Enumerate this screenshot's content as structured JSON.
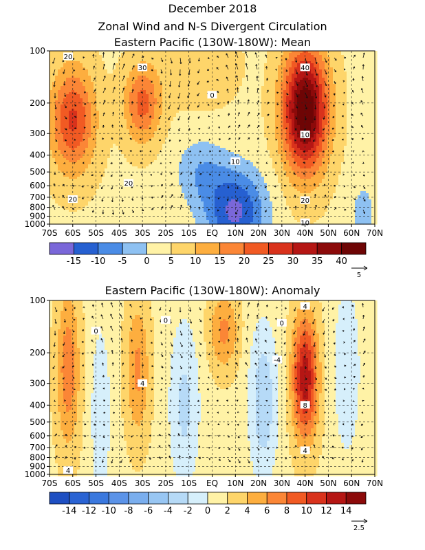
{
  "titles": {
    "line1": "December 2018",
    "line2": "Zonal Wind and N-S Divergent Circulation",
    "mean": "Eastern Pacific (130W-180W): Mean",
    "anomaly": "Eastern Pacific (130W-180W): Anomaly"
  },
  "chart_data": [
    {
      "type": "heatmap",
      "title": "Eastern Pacific (130W-180W): Mean",
      "x_ticks": [
        "70S",
        "60S",
        "50S",
        "40S",
        "30S",
        "20S",
        "10S",
        "EQ",
        "10N",
        "20N",
        "30N",
        "40N",
        "50N",
        "60N",
        "70N"
      ],
      "y_ticks": [
        "100",
        "200",
        "300",
        "400",
        "500",
        "600",
        "700",
        "800",
        "900",
        "1000"
      ],
      "colorbar_labels": [
        "-15",
        "-10",
        "-5",
        "0",
        "5",
        "10",
        "15",
        "20",
        "25",
        "30",
        "35",
        "40"
      ],
      "colorbar_levels": [
        -20,
        -15,
        -10,
        -5,
        0,
        5,
        10,
        15,
        20,
        25,
        30,
        35,
        40,
        45
      ],
      "colorbar_colors": [
        "#7a67d9",
        "#2660d1",
        "#4a8ce6",
        "#8ec1f2",
        "#fff2a6",
        "#fed56a",
        "#fdae3f",
        "#fb8636",
        "#f15a23",
        "#d9321c",
        "#b51614",
        "#8c0a0a",
        "#6e0505"
      ],
      "contour_labels": [
        "20",
        "20",
        "30",
        "40",
        "10",
        "0",
        "10",
        "20",
        "20",
        "10"
      ],
      "vector_scale_label": "5",
      "features": [
        {
          "lat": -60,
          "p": 250,
          "value": 22
        },
        {
          "lat": -30,
          "p": 200,
          "value": 22
        },
        {
          "lat": 40,
          "p": 220,
          "value": 44
        },
        {
          "lat": 10,
          "p": 850,
          "value": -15
        }
      ]
    },
    {
      "type": "heatmap",
      "title": "Eastern Pacific (130W-180W): Anomaly",
      "x_ticks": [
        "70S",
        "60S",
        "50S",
        "40S",
        "30S",
        "20S",
        "10S",
        "EQ",
        "10N",
        "20N",
        "30N",
        "40N",
        "50N",
        "60N",
        "70N"
      ],
      "y_ticks": [
        "100",
        "200",
        "300",
        "400",
        "500",
        "600",
        "700",
        "800",
        "900",
        "1000"
      ],
      "colorbar_labels": [
        "-14",
        "-12",
        "-10",
        "-8",
        "-6",
        "-4",
        "-2",
        "0",
        "2",
        "4",
        "6",
        "8",
        "10",
        "12",
        "14"
      ],
      "colorbar_levels": [
        -16,
        -14,
        -12,
        -10,
        -8,
        -6,
        -4,
        -2,
        0,
        2,
        4,
        6,
        8,
        10,
        12,
        14,
        16
      ],
      "colorbar_colors": [
        "#1e4fc2",
        "#2a63d3",
        "#3a78de",
        "#5b93e8",
        "#7aaeee",
        "#98c6f3",
        "#b6daf7",
        "#d6effb",
        "#fff2a6",
        "#fed56a",
        "#fdae3f",
        "#fb8636",
        "#f15a23",
        "#d9321c",
        "#b51614",
        "#8c0a0a"
      ],
      "contour_labels": [
        "4",
        "0",
        "4",
        "0",
        "0",
        "-4",
        "8",
        "4",
        "4"
      ],
      "vector_scale_label": "2.5",
      "features": [
        {
          "lat": -62,
          "p": 250,
          "value": 6
        },
        {
          "lat": -32,
          "p": 250,
          "value": 5
        },
        {
          "lat": 40,
          "p": 280,
          "value": 13
        },
        {
          "lat": 22,
          "p": 350,
          "value": -6
        }
      ]
    }
  ]
}
